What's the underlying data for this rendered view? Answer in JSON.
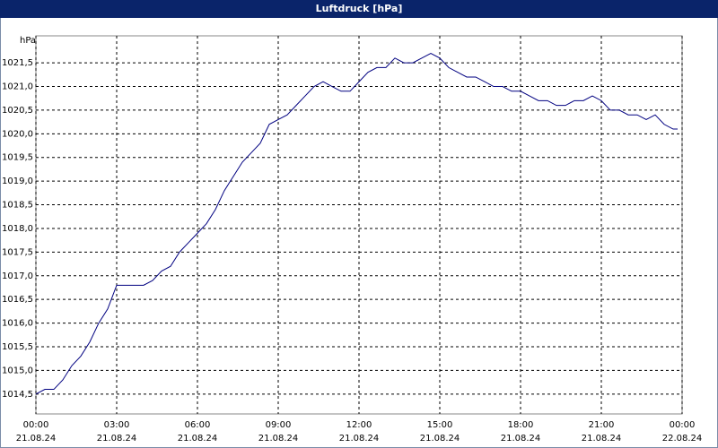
{
  "chart_data": {
    "type": "line",
    "title": "Luftdruck [hPa]",
    "y_label": "hPa",
    "x": [
      0,
      20,
      40,
      60,
      80,
      100,
      120,
      140,
      160,
      180,
      200,
      220,
      240,
      260,
      280,
      300,
      320,
      340,
      360,
      380,
      400,
      420,
      440,
      460,
      480,
      500,
      520,
      540,
      560,
      580,
      600,
      620,
      640,
      660,
      680,
      700,
      720,
      740,
      760,
      780,
      800,
      820,
      840,
      860,
      880,
      900,
      920,
      940,
      960,
      980,
      1000,
      1020,
      1040,
      1060,
      1080,
      1100,
      1120,
      1140,
      1160,
      1180,
      1200,
      1220,
      1240,
      1260,
      1280,
      1300,
      1320,
      1340,
      1360,
      1380,
      1400,
      1420,
      1430
    ],
    "series": [
      {
        "color": "#000080",
        "values": [
          1014.5,
          1014.6,
          1014.6,
          1014.8,
          1015.1,
          1015.3,
          1015.6,
          1016.0,
          1016.3,
          1016.8,
          1016.8,
          1016.8,
          1016.8,
          1016.9,
          1017.1,
          1017.2,
          1017.5,
          1017.7,
          1017.9,
          1018.1,
          1018.4,
          1018.8,
          1019.1,
          1019.4,
          1019.6,
          1019.8,
          1020.2,
          1020.3,
          1020.4,
          1020.6,
          1020.8,
          1021.0,
          1021.1,
          1021.0,
          1020.9,
          1020.9,
          1021.1,
          1021.3,
          1021.4,
          1021.4,
          1021.6,
          1021.5,
          1021.5,
          1021.6,
          1021.7,
          1021.6,
          1021.4,
          1021.3,
          1021.2,
          1021.2,
          1021.1,
          1021.0,
          1021.0,
          1020.9,
          1020.9,
          1020.8,
          1020.7,
          1020.7,
          1020.6,
          1020.6,
          1020.7,
          1020.7,
          1020.8,
          1020.7,
          1020.5,
          1020.5,
          1020.4,
          1020.4,
          1020.3,
          1020.4,
          1020.2,
          1020.1,
          1020.1
        ]
      }
    ],
    "xlim": [
      0,
      1440
    ],
    "xticks": [
      {
        "value": 0,
        "label": "00:00",
        "date": "21.08.24"
      },
      {
        "value": 180,
        "label": "03:00",
        "date": "21.08.24"
      },
      {
        "value": 360,
        "label": "06:00",
        "date": "21.08.24"
      },
      {
        "value": 540,
        "label": "09:00",
        "date": "21.08.24"
      },
      {
        "value": 720,
        "label": "12:00",
        "date": "21.08.24"
      },
      {
        "value": 900,
        "label": "15:00",
        "date": "21.08.24"
      },
      {
        "value": 1080,
        "label": "18:00",
        "date": "21.08.24"
      },
      {
        "value": 1260,
        "label": "21:00",
        "date": "21.08.24"
      },
      {
        "value": 1440,
        "label": "00:00",
        "date": "22.08.24"
      }
    ],
    "ylim": [
      1014.08,
      1022.07
    ],
    "yticks": [
      {
        "value": 1014.5,
        "label": "1014,5"
      },
      {
        "value": 1015,
        "label": "1015,0"
      },
      {
        "value": 1015.5,
        "label": "1015,5"
      },
      {
        "value": 1016,
        "label": "1016,0"
      },
      {
        "value": 1016.5,
        "label": "1016,5"
      },
      {
        "value": 1017,
        "label": "1017,0"
      },
      {
        "value": 1017.5,
        "label": "1017,5"
      },
      {
        "value": 1018,
        "label": "1018,0"
      },
      {
        "value": 1018.5,
        "label": "1018,5"
      },
      {
        "value": 1019,
        "label": "1019,0"
      },
      {
        "value": 1019.5,
        "label": "1019,5"
      },
      {
        "value": 1020,
        "label": "1020,0"
      },
      {
        "value": 1020.5,
        "label": "1020,5"
      },
      {
        "value": 1021,
        "label": "1021,0"
      },
      {
        "value": 1021.5,
        "label": "1021,5"
      }
    ],
    "grid": true
  }
}
